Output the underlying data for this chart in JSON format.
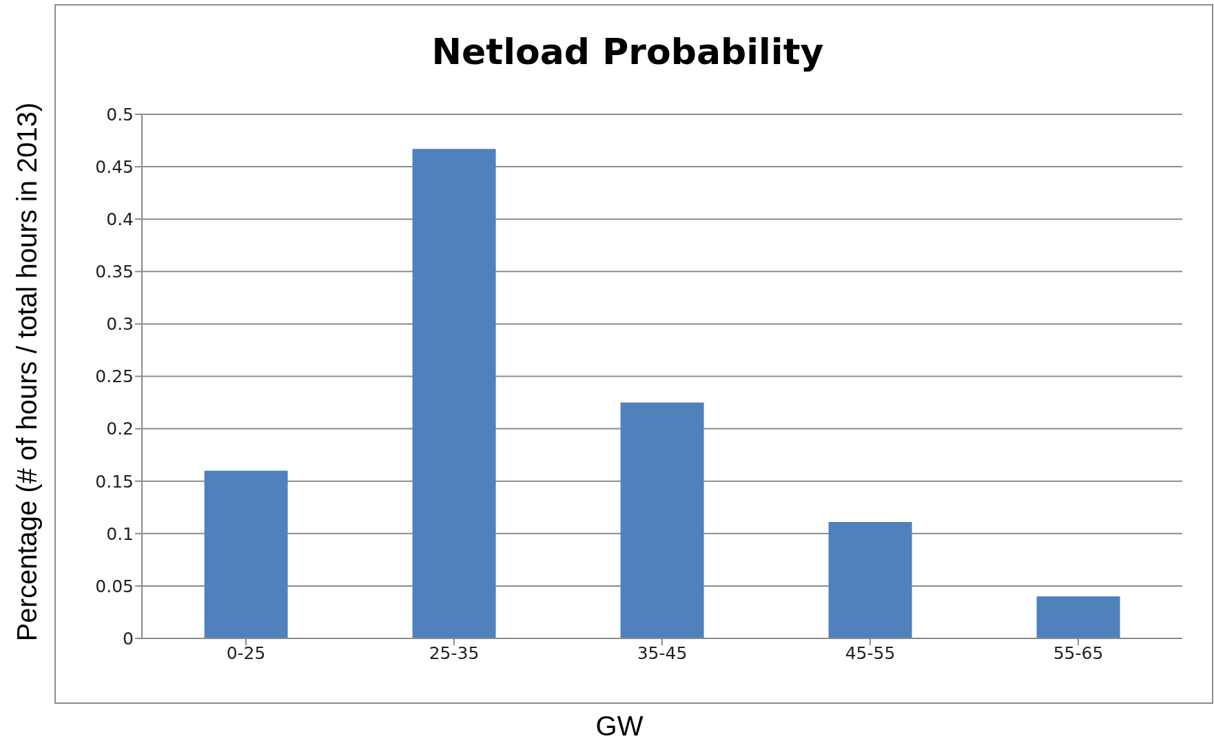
{
  "chart_data": {
    "type": "bar",
    "title": "Netload Probability",
    "xlabel": "GW",
    "ylabel": "Percentage  (# of hours / total hours in 2013)",
    "categories": [
      "0-25",
      "25-35",
      "35-45",
      "45-55",
      "55-65"
    ],
    "values": [
      0.16,
      0.467,
      0.225,
      0.111,
      0.04
    ],
    "color": "#4f81bd",
    "ylim": [
      0,
      0.5
    ],
    "yticks": [
      0,
      0.05,
      0.1,
      0.15,
      0.2,
      0.25,
      0.3,
      0.35,
      0.4,
      0.45,
      0.5
    ],
    "grid": "y"
  }
}
